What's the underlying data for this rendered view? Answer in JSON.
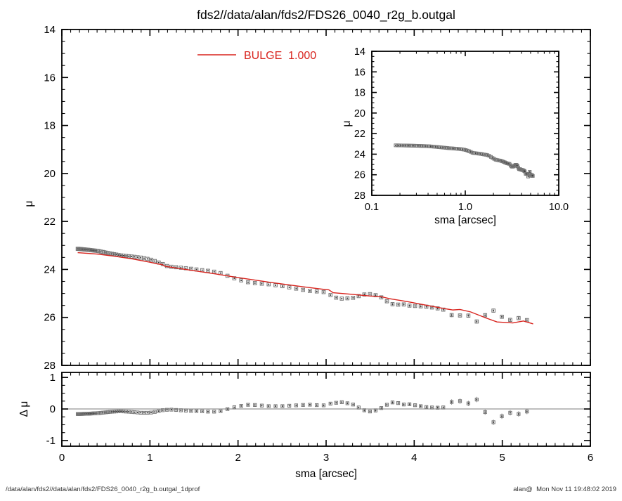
{
  "window": {
    "title": "fds2//data/alan/fds2/FDS26_0040_r2g_b.outgal",
    "footer_left": "/data/alan/fds2//data/alan/fds2/FDS26_0040_r2g_b.outgal_1dprof",
    "footer_right": "alan@  Mon Nov 11 19:48:02 2019"
  },
  "colors": {
    "background": "#ffffff",
    "axis": "#000000",
    "model_line": "#d8231d",
    "marker_edge": "#757575",
    "marker_dot": "#333333",
    "error_bar": "#8f8f8f",
    "zero_line": "#a8a8a8",
    "footer_text": "#333333"
  },
  "chart_data": {
    "type": "scatter",
    "description": "Galaxy 1D surface-brightness profile (mu vs sma) with red BULGE model line, log-x inset panel, and residual (delta mu) panel below",
    "marker_sma": [
      0.18,
      0.188,
      0.195,
      0.204,
      0.212,
      0.221,
      0.23,
      0.24,
      0.25,
      0.261,
      0.272,
      0.283,
      0.295,
      0.307,
      0.32,
      0.334,
      0.348,
      0.362,
      0.377,
      0.393,
      0.41,
      0.427,
      0.445,
      0.464,
      0.483,
      0.503,
      0.524,
      0.546,
      0.569,
      0.593,
      0.618,
      0.644,
      0.671,
      0.699,
      0.729,
      0.759,
      0.791,
      0.824,
      0.859,
      0.895,
      0.933,
      0.972,
      1.013,
      1.055,
      1.1,
      1.146,
      1.194,
      1.244,
      1.296,
      1.351,
      1.408,
      1.467,
      1.528,
      1.593,
      1.659,
      1.729,
      1.802,
      1.88,
      1.958,
      2.036,
      2.114,
      2.192,
      2.27,
      2.348,
      2.426,
      2.504,
      2.582,
      2.66,
      2.738,
      2.816,
      2.894,
      2.972,
      3.05,
      3.114,
      3.178,
      3.242,
      3.306,
      3.37,
      3.434,
      3.498,
      3.562,
      3.626,
      3.69,
      3.754,
      3.818,
      3.882,
      3.946,
      4.01,
      4.074,
      4.138,
      4.202,
      4.266,
      4.33,
      4.425,
      4.52,
      4.615,
      4.71,
      4.805,
      4.9,
      4.995,
      5.09,
      5.185,
      5.28
    ],
    "model_mu_keypoints": [
      [
        0.18,
        23.3
      ],
      [
        0.4,
        23.36
      ],
      [
        0.6,
        23.45
      ],
      [
        0.8,
        23.56
      ],
      [
        1.0,
        23.7
      ],
      [
        1.1,
        23.78
      ],
      [
        1.14,
        23.8
      ],
      [
        1.17,
        23.87
      ],
      [
        1.35,
        23.97
      ],
      [
        1.55,
        24.08
      ],
      [
        1.75,
        24.19
      ],
      [
        1.95,
        24.31
      ],
      [
        2.15,
        24.42
      ],
      [
        2.35,
        24.53
      ],
      [
        2.55,
        24.63
      ],
      [
        2.75,
        24.73
      ],
      [
        2.95,
        24.82
      ],
      [
        3.03,
        24.85
      ],
      [
        3.08,
        24.97
      ],
      [
        3.3,
        25.04
      ],
      [
        3.5,
        25.11
      ],
      [
        3.62,
        25.13
      ],
      [
        3.72,
        25.22
      ],
      [
        3.92,
        25.34
      ],
      [
        4.12,
        25.48
      ],
      [
        4.32,
        25.62
      ],
      [
        4.44,
        25.69
      ],
      [
        4.52,
        25.67
      ],
      [
        4.64,
        25.77
      ],
      [
        4.82,
        26.03
      ],
      [
        4.94,
        26.19
      ],
      [
        5.12,
        26.23
      ],
      [
        5.24,
        26.15
      ],
      [
        5.35,
        26.27
      ]
    ],
    "residual_dmu_keypoints": [
      [
        0.18,
        -0.16
      ],
      [
        0.3,
        -0.15
      ],
      [
        0.42,
        -0.13
      ],
      [
        0.55,
        -0.09
      ],
      [
        0.66,
        -0.07
      ],
      [
        0.78,
        -0.09
      ],
      [
        0.9,
        -0.12
      ],
      [
        1.0,
        -0.12
      ],
      [
        1.08,
        -0.08
      ],
      [
        1.16,
        -0.03
      ],
      [
        1.24,
        -0.02
      ],
      [
        1.34,
        -0.04
      ],
      [
        1.46,
        -0.06
      ],
      [
        1.58,
        -0.07
      ],
      [
        1.7,
        -0.09
      ],
      [
        1.8,
        -0.07
      ],
      [
        1.86,
        -0.02
      ],
      [
        1.93,
        0.04
      ],
      [
        2.04,
        0.1
      ],
      [
        2.13,
        0.14
      ],
      [
        2.22,
        0.12
      ],
      [
        2.35,
        0.09
      ],
      [
        2.5,
        0.09
      ],
      [
        2.63,
        0.11
      ],
      [
        2.75,
        0.13
      ],
      [
        2.85,
        0.14
      ],
      [
        2.95,
        0.1
      ],
      [
        3.05,
        0.17
      ],
      [
        3.17,
        0.22
      ],
      [
        3.3,
        0.15
      ],
      [
        3.43,
        -0.04
      ],
      [
        3.5,
        -0.08
      ],
      [
        3.56,
        -0.05
      ],
      [
        3.62,
        0.02
      ],
      [
        3.73,
        0.2
      ],
      [
        3.79,
        0.22
      ],
      [
        3.86,
        0.14
      ],
      [
        3.95,
        0.15
      ],
      [
        4.05,
        0.1
      ],
      [
        4.14,
        0.06
      ],
      [
        4.25,
        0.04
      ],
      [
        4.33,
        0.05
      ],
      [
        4.42,
        0.22
      ],
      [
        4.52,
        0.25
      ],
      [
        4.61,
        0.17
      ],
      [
        4.71,
        0.3
      ],
      [
        4.81,
        -0.12
      ],
      [
        4.9,
        -0.42
      ],
      [
        5.0,
        -0.22
      ],
      [
        5.09,
        -0.12
      ],
      [
        5.19,
        -0.16
      ],
      [
        5.28,
        -0.08
      ]
    ],
    "data_mu_rule": "mu_data(sma) = interp(model_mu_keypoints, sma) + interp(residual_dmu_keypoints, sma)",
    "error_bar_mag_by_sma": [
      [
        2.0,
        0.015
      ],
      [
        3.4,
        0.03
      ],
      [
        4.35,
        0.05
      ],
      [
        99,
        0.085
      ]
    ],
    "panels": {
      "main": {
        "type": "scatter+line",
        "xlim": [
          0,
          6
        ],
        "ylim_top_bottom": [
          14,
          28
        ],
        "ylabel": "μ",
        "x_ticks": {
          "major_values": [
            0,
            1,
            2,
            3,
            4,
            5,
            6
          ],
          "minor_step": 0.1,
          "labels": []
        },
        "y_ticks": {
          "major_values": [
            14,
            16,
            18,
            20,
            22,
            24,
            26,
            28
          ],
          "minor_step": 0.5,
          "labels": [
            "14",
            "16",
            "18",
            "20",
            "22",
            "24",
            "26",
            "28"
          ]
        },
        "legend": {
          "label": "BULGE  1.000",
          "series": "bulge-model"
        }
      },
      "inset": {
        "type": "scatter",
        "x_scale": "log",
        "xlim": [
          0.1,
          10
        ],
        "ylim_top_bottom": [
          14,
          28
        ],
        "xlabel": "sma [arcsec]",
        "ylabel": "μ",
        "x_ticks": {
          "major_values": [
            0.1,
            1,
            10
          ],
          "minor_values": [
            0.2,
            0.3,
            0.4,
            0.5,
            0.6,
            0.7,
            0.8,
            0.9,
            2,
            3,
            4,
            5,
            6,
            7,
            8,
            9
          ],
          "labels": [
            "0.1",
            "1.0",
            "10.0"
          ]
        },
        "y_ticks": {
          "major_values": [
            14,
            16,
            18,
            20,
            22,
            24,
            26,
            28
          ],
          "minor_step": 0.5,
          "labels": [
            "14",
            "16",
            "18",
            "20",
            "22",
            "24",
            "26",
            "28"
          ]
        }
      },
      "residual": {
        "type": "scatter",
        "xlim": [
          0,
          6
        ],
        "ylim_top_bottom": [
          1.16,
          -1.18
        ],
        "xlabel": "sma [arcsec]",
        "ylabel": "Δ μ",
        "zero_line": true,
        "x_ticks": {
          "major_values": [
            0,
            1,
            2,
            3,
            4,
            5,
            6
          ],
          "minor_step": 0.1,
          "labels": [
            "0",
            "1",
            "2",
            "3",
            "4",
            "5",
            "6"
          ]
        },
        "y_ticks": {
          "major_values": [
            1,
            0,
            -1
          ],
          "minor_step": 0.25,
          "labels": [
            "1",
            "0",
            "-1"
          ]
        }
      }
    }
  }
}
